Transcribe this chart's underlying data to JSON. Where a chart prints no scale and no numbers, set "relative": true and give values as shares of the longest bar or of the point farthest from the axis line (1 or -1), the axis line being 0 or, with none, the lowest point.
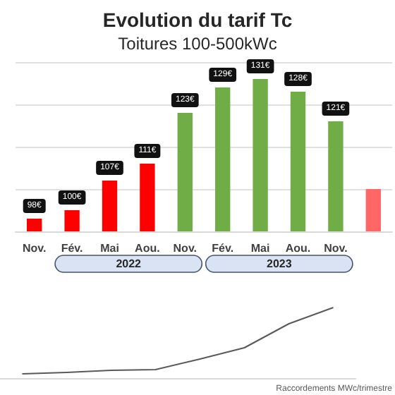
{
  "chart_data": [
    {
      "type": "bar",
      "title": "Evolution du tarif Tc",
      "subtitle": "Toitures 100-500kWc",
      "categories": [
        "Nov.",
        "Fév.",
        "Mai",
        "Aou.",
        "Nov.",
        "Fév.",
        "Mai",
        "Aou.",
        "Nov.",
        null
      ],
      "values": [
        98,
        100,
        107,
        111,
        123,
        129,
        131,
        128,
        121,
        105
      ],
      "colors": [
        "#ff0000",
        "#ff0000",
        "#ff0000",
        "#ff0000",
        "#70ad47",
        "#70ad47",
        "#70ad47",
        "#70ad47",
        "#70ad47",
        "#ff6666"
      ],
      "value_labels": [
        "98€",
        "100€",
        "107€",
        "111€",
        "123€",
        "129€",
        "131€",
        "128€",
        "121€",
        null
      ],
      "ylim": [
        95,
        135
      ],
      "yticks": [
        {
          "value": 95,
          "label": null
        },
        {
          "value": 105,
          "label": null
        },
        {
          "value": 115,
          "label": null
        },
        {
          "value": 125,
          "label": null
        },
        {
          "value": 135,
          "label": null
        }
      ],
      "grid": "y",
      "annotations": [
        "2022",
        "2023"
      ]
    },
    {
      "type": "line",
      "relative": true,
      "categories": [
        null,
        null,
        null,
        null,
        null,
        null,
        null,
        null
      ],
      "values": [
        0.06,
        0.08,
        0.11,
        0.12,
        0.27,
        0.43,
        0.77,
        1
      ],
      "color": "#595959",
      "marker": "none",
      "annotations": [
        "Raccordements MWc/trimestre"
      ]
    }
  ]
}
